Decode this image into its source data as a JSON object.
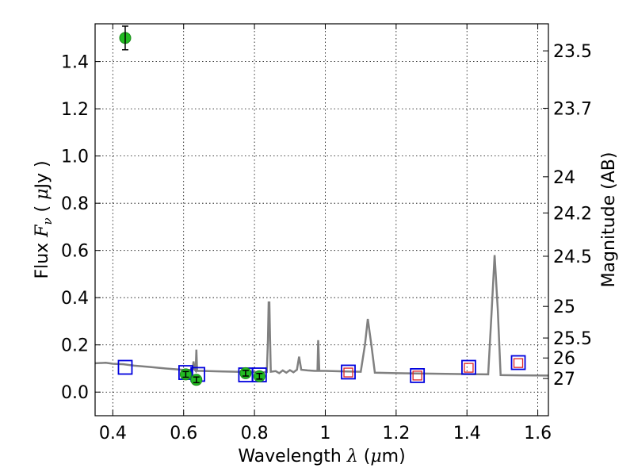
{
  "chart_data": {
    "type": "scatter",
    "xlabel": "Wavelength λ (μm)",
    "xlabel_parts": {
      "text": "Wavelength ",
      "symbol": "λ",
      "unit_open": " (",
      "unit_mu": "μ",
      "unit_rest": "m)"
    },
    "ylabel": "Flux F_ν ( μJy )",
    "ylabel_parts": {
      "text": "Flux ",
      "symbol": "F",
      "sub": "ν",
      "unit_open": " ( ",
      "unit_mu": "μ",
      "unit_rest": "Jy )"
    },
    "y2label": "Magnitude (AB)",
    "xlim": [
      0.35,
      1.63
    ],
    "ylim": [
      -0.1,
      1.56
    ],
    "grid": true,
    "x_ticks": [
      {
        "v": 0.4,
        "label": "0.4"
      },
      {
        "v": 0.6,
        "label": "0.6"
      },
      {
        "v": 0.8,
        "label": "0.8"
      },
      {
        "v": 1.0,
        "label": "1"
      },
      {
        "v": 1.2,
        "label": "1.2"
      },
      {
        "v": 1.4,
        "label": "1.4"
      },
      {
        "v": 1.6,
        "label": "1.6"
      }
    ],
    "y_ticks": [
      {
        "v": 0.0,
        "label": "0.0"
      },
      {
        "v": 0.2,
        "label": "0.2"
      },
      {
        "v": 0.4,
        "label": "0.4"
      },
      {
        "v": 0.6,
        "label": "0.6"
      },
      {
        "v": 0.8,
        "label": "0.8"
      },
      {
        "v": 1.0,
        "label": "1.0"
      },
      {
        "v": 1.2,
        "label": "1.2"
      },
      {
        "v": 1.4,
        "label": "1.4"
      }
    ],
    "y2_ticks": [
      {
        "mag": 23.5,
        "label": "23.5"
      },
      {
        "mag": 23.7,
        "label": "23.7"
      },
      {
        "mag": 24,
        "label": "24"
      },
      {
        "mag": 24.2,
        "label": "24.2"
      },
      {
        "mag": 24.5,
        "label": "24.5"
      },
      {
        "mag": 25,
        "label": "25"
      },
      {
        "mag": 25.5,
        "label": "25.5"
      },
      {
        "mag": 26,
        "label": "26"
      },
      {
        "mag": 27,
        "label": "27"
      }
    ],
    "observed_points": [
      {
        "x": 0.435,
        "y": 1.5,
        "err": 0.05
      },
      {
        "x": 0.606,
        "y": 0.075,
        "err": 0.012
      },
      {
        "x": 0.636,
        "y": 0.052,
        "err": 0.012
      },
      {
        "x": 0.775,
        "y": 0.08,
        "err": 0.012
      },
      {
        "x": 0.814,
        "y": 0.067,
        "err": 0.012
      }
    ],
    "model_band_fluxes": [
      {
        "x": 0.435,
        "y": 0.105
      },
      {
        "x": 0.606,
        "y": 0.083
      },
      {
        "x": 0.64,
        "y": 0.075
      },
      {
        "x": 0.775,
        "y": 0.073
      },
      {
        "x": 0.814,
        "y": 0.073
      }
    ],
    "model_band_fluxes_ir": [
      {
        "x": 1.065,
        "y": 0.085
      },
      {
        "x": 1.26,
        "y": 0.07
      },
      {
        "x": 1.405,
        "y": 0.105
      },
      {
        "x": 1.545,
        "y": 0.125
      }
    ],
    "upper_limit_points": [
      {
        "x": 1.065,
        "y": 0.083
      },
      {
        "x": 1.26,
        "y": 0.07
      },
      {
        "x": 1.405,
        "y": 0.103
      },
      {
        "x": 1.545,
        "y": 0.123
      }
    ],
    "model_spectrum": [
      [
        0.35,
        0.122
      ],
      [
        0.38,
        0.124
      ],
      [
        0.4,
        0.12
      ],
      [
        0.43,
        0.118
      ],
      [
        0.46,
        0.112
      ],
      [
        0.5,
        0.107
      ],
      [
        0.55,
        0.1
      ],
      [
        0.6,
        0.094
      ],
      [
        0.625,
        0.094
      ],
      [
        0.628,
        0.13
      ],
      [
        0.631,
        0.095
      ],
      [
        0.634,
        0.09
      ],
      [
        0.636,
        0.18
      ],
      [
        0.638,
        0.09
      ],
      [
        0.65,
        0.09
      ],
      [
        0.7,
        0.088
      ],
      [
        0.75,
        0.086
      ],
      [
        0.8,
        0.085
      ],
      [
        0.825,
        0.084
      ],
      [
        0.835,
        0.085
      ],
      [
        0.838,
        0.22
      ],
      [
        0.84,
        0.38
      ],
      [
        0.842,
        0.38
      ],
      [
        0.844,
        0.22
      ],
      [
        0.846,
        0.086
      ],
      [
        0.86,
        0.089
      ],
      [
        0.87,
        0.08
      ],
      [
        0.88,
        0.092
      ],
      [
        0.89,
        0.082
      ],
      [
        0.9,
        0.093
      ],
      [
        0.91,
        0.084
      ],
      [
        0.92,
        0.095
      ],
      [
        0.926,
        0.15
      ],
      [
        0.932,
        0.095
      ],
      [
        0.95,
        0.092
      ],
      [
        0.97,
        0.09
      ],
      [
        0.978,
        0.09
      ],
      [
        0.98,
        0.22
      ],
      [
        0.983,
        0.09
      ],
      [
        1.0,
        0.09
      ],
      [
        1.05,
        0.088
      ],
      [
        1.1,
        0.086
      ],
      [
        1.112,
        0.2
      ],
      [
        1.12,
        0.31
      ],
      [
        1.13,
        0.2
      ],
      [
        1.14,
        0.082
      ],
      [
        1.2,
        0.08
      ],
      [
        1.3,
        0.078
      ],
      [
        1.4,
        0.076
      ],
      [
        1.46,
        0.075
      ],
      [
        1.47,
        0.35
      ],
      [
        1.478,
        0.58
      ],
      [
        1.487,
        0.35
      ],
      [
        1.495,
        0.072
      ],
      [
        1.55,
        0.071
      ],
      [
        1.63,
        0.07
      ]
    ],
    "colors": {
      "spectrum": "#808080",
      "observed": "#22bb22",
      "observed_edge": "#1a8a1a",
      "model_box": "#0000dd",
      "upper_limit_box": "#dd2222",
      "grid": "#000000"
    }
  }
}
